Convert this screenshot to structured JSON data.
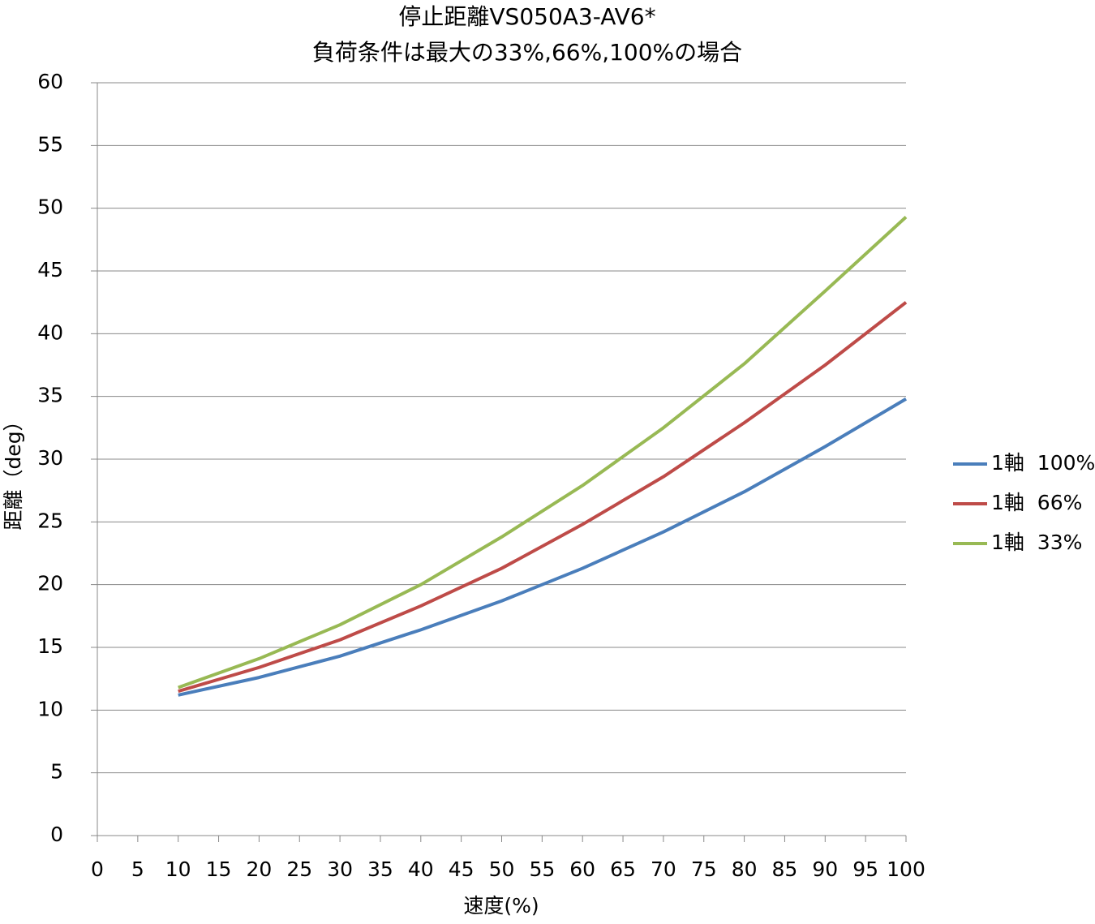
{
  "chart_data": {
    "type": "line",
    "title": "停止距離VS050A3-AV6*",
    "subtitle": "負荷条件は最大の33%,66%,100%の場合",
    "x_label": "速度(%)",
    "y_label": "距離（deg）",
    "x": [
      10,
      20,
      30,
      40,
      50,
      60,
      70,
      80,
      90,
      100
    ],
    "series": [
      {
        "name": "1軸  100%",
        "color": "#4a7ebb",
        "values": [
          11.2,
          12.6,
          14.3,
          16.4,
          18.7,
          21.3,
          24.2,
          27.4,
          31.0,
          34.8
        ]
      },
      {
        "name": "1軸  66%",
        "color": "#be4b48",
        "values": [
          11.5,
          13.4,
          15.6,
          18.3,
          21.3,
          24.8,
          28.6,
          32.9,
          37.5,
          42.5
        ]
      },
      {
        "name": "1軸  33%",
        "color": "#98b954",
        "values": [
          11.8,
          14.1,
          16.8,
          20.0,
          23.8,
          27.9,
          32.5,
          37.6,
          43.4,
          49.3
        ]
      }
    ],
    "xlim": [
      0,
      100
    ],
    "xticks": [
      0,
      5,
      10,
      15,
      20,
      25,
      30,
      35,
      40,
      45,
      50,
      55,
      60,
      65,
      70,
      75,
      80,
      85,
      90,
      95,
      100
    ],
    "ylim": [
      0,
      60
    ],
    "yticks": [
      0,
      5,
      10,
      15,
      20,
      25,
      30,
      35,
      40,
      45,
      50,
      55,
      60
    ],
    "grid": true,
    "legend": "right"
  }
}
